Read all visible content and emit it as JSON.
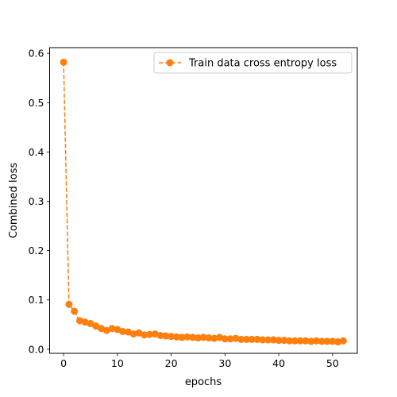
{
  "chart_data": {
    "type": "line",
    "title": "",
    "xlabel": "epochs",
    "ylabel": "Combined loss",
    "xlim": [
      -2.6,
      54.6
    ],
    "ylim": [
      -0.0083,
      0.6115
    ],
    "xticks": [
      0,
      10,
      20,
      30,
      40,
      50
    ],
    "yticks": [
      0.0,
      0.1,
      0.2,
      0.3,
      0.4,
      0.5,
      0.6
    ],
    "grid": false,
    "legend_position": "top-right",
    "series": [
      {
        "name": "Train data cross entropy loss",
        "color": "#ff7f0e",
        "line_style": "dashed",
        "marker": "circle",
        "x": [
          0,
          1,
          2,
          3,
          4,
          5,
          6,
          7,
          8,
          9,
          10,
          11,
          12,
          13,
          14,
          15,
          16,
          17,
          18,
          19,
          20,
          21,
          22,
          23,
          24,
          25,
          26,
          27,
          28,
          29,
          30,
          31,
          32,
          33,
          34,
          35,
          36,
          37,
          38,
          39,
          40,
          41,
          42,
          43,
          44,
          45,
          46,
          47,
          48,
          49,
          50,
          51,
          52
        ],
        "y": [
          0.582,
          0.091,
          0.077,
          0.058,
          0.055,
          0.052,
          0.047,
          0.042,
          0.038,
          0.042,
          0.04,
          0.036,
          0.035,
          0.031,
          0.033,
          0.029,
          0.03,
          0.031,
          0.028,
          0.027,
          0.026,
          0.025,
          0.024,
          0.025,
          0.024,
          0.023,
          0.024,
          0.023,
          0.022,
          0.024,
          0.021,
          0.021,
          0.022,
          0.02,
          0.02,
          0.02,
          0.02,
          0.019,
          0.019,
          0.019,
          0.018,
          0.018,
          0.017,
          0.017,
          0.017,
          0.017,
          0.016,
          0.017,
          0.016,
          0.016,
          0.016,
          0.015,
          0.017
        ]
      }
    ]
  }
}
